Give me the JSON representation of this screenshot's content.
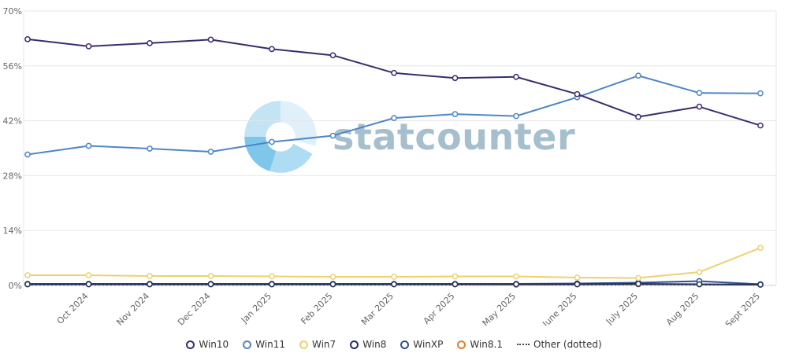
{
  "watermark": {
    "text": "statcounter"
  },
  "chart_data": {
    "type": "line",
    "title": "",
    "x_labels": [
      "",
      "Oct 2024",
      "Nov 2024",
      "Dec 2024",
      "Jan 2025",
      "Feb 2025",
      "Mar 2025",
      "Apr 2025",
      "May 2025",
      "June 2025",
      "July 2025",
      "Aug 2025",
      "Sept 2025"
    ],
    "y_ticks": [
      0,
      14,
      28,
      42,
      56,
      70
    ],
    "y_tick_labels": [
      "0%",
      "14%",
      "28%",
      "42%",
      "56%",
      "70%"
    ],
    "ylim": [
      0,
      70
    ],
    "grid": "horizontal",
    "legend_position": "bottom",
    "series": [
      {
        "name": "Win10",
        "color": "#3d2b6d",
        "dotted": false,
        "values": [
          62.8,
          61.0,
          61.8,
          62.7,
          60.3,
          58.7,
          54.2,
          52.9,
          53.2,
          48.8,
          43.0,
          45.6,
          40.8
        ]
      },
      {
        "name": "Win11",
        "color": "#4f86c6",
        "dotted": false,
        "values": [
          33.4,
          35.6,
          34.9,
          34.1,
          36.6,
          38.2,
          42.7,
          43.7,
          43.2,
          48.0,
          53.5,
          49.1,
          49.0
        ]
      },
      {
        "name": "Win7",
        "color": "#efd06e",
        "dotted": false,
        "values": [
          2.6,
          2.6,
          2.4,
          2.4,
          2.3,
          2.2,
          2.2,
          2.3,
          2.3,
          2.0,
          1.9,
          3.4,
          9.6
        ]
      },
      {
        "name": "Win8",
        "color": "#20305e",
        "dotted": false,
        "values": [
          0.3,
          0.3,
          0.3,
          0.3,
          0.3,
          0.3,
          0.3,
          0.3,
          0.3,
          0.3,
          0.4,
          0.3,
          0.2
        ]
      },
      {
        "name": "WinXP",
        "color": "#2f5191",
        "dotted": false,
        "values": [
          0.4,
          0.4,
          0.4,
          0.4,
          0.4,
          0.4,
          0.4,
          0.4,
          0.4,
          0.5,
          0.7,
          1.1,
          0.3
        ]
      },
      {
        "name": "Win8.1",
        "color": "#df7f2e",
        "dotted": false,
        "values": [
          0.3,
          0.3,
          0.3,
          0.3,
          0.3,
          0.3,
          0.3,
          0.3,
          0.2,
          0.3,
          0.3,
          0.3,
          0.2
        ]
      },
      {
        "name": "Other (dotted)",
        "color": "#444444",
        "dotted": true,
        "values": [
          0.15,
          0.15,
          0.15,
          0.15,
          0.15,
          0.15,
          0.15,
          0.15,
          0.15,
          0.15,
          0.15,
          0.15,
          0.15
        ]
      }
    ]
  }
}
